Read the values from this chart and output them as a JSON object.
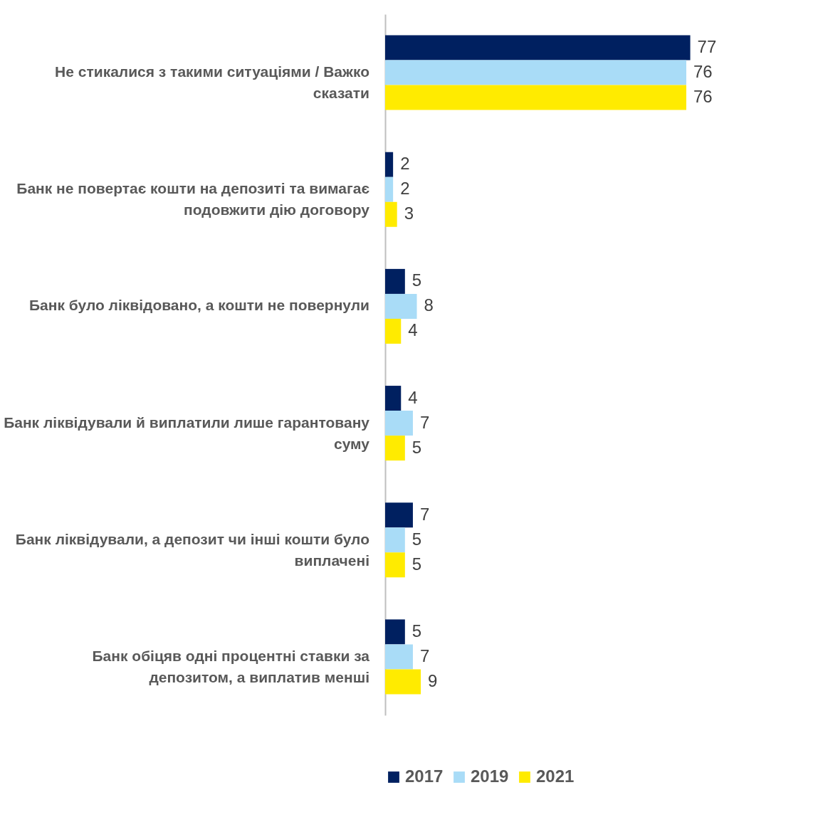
{
  "chart_data": {
    "type": "bar",
    "orientation": "horizontal",
    "categories": [
      "Не стикалися з такими ситуаціями / Важко сказати",
      "Банк не повертає кошти на депозиті та вимагає подовжити дію договору",
      "Банк було ліквідовано, а кошти не повернули",
      "Банк ліквідували й виплатили лише гарантовану суму",
      "Банк ліквідували, а депозит чи інші кошти було виплачені",
      "Банк обіцяв одні процентні ставки за депозитом, а виплатив менші"
    ],
    "series": [
      {
        "name": "2017",
        "color": "#002060",
        "values": [
          77,
          2,
          5,
          4,
          7,
          5
        ]
      },
      {
        "name": "2019",
        "color": "#a9dcf7",
        "values": [
          76,
          2,
          8,
          7,
          5,
          7
        ]
      },
      {
        "name": "2021",
        "color": "#ffeb00",
        "values": [
          76,
          3,
          4,
          5,
          5,
          9
        ]
      }
    ],
    "data_labels": true,
    "legend": "bottom",
    "grid": false
  }
}
